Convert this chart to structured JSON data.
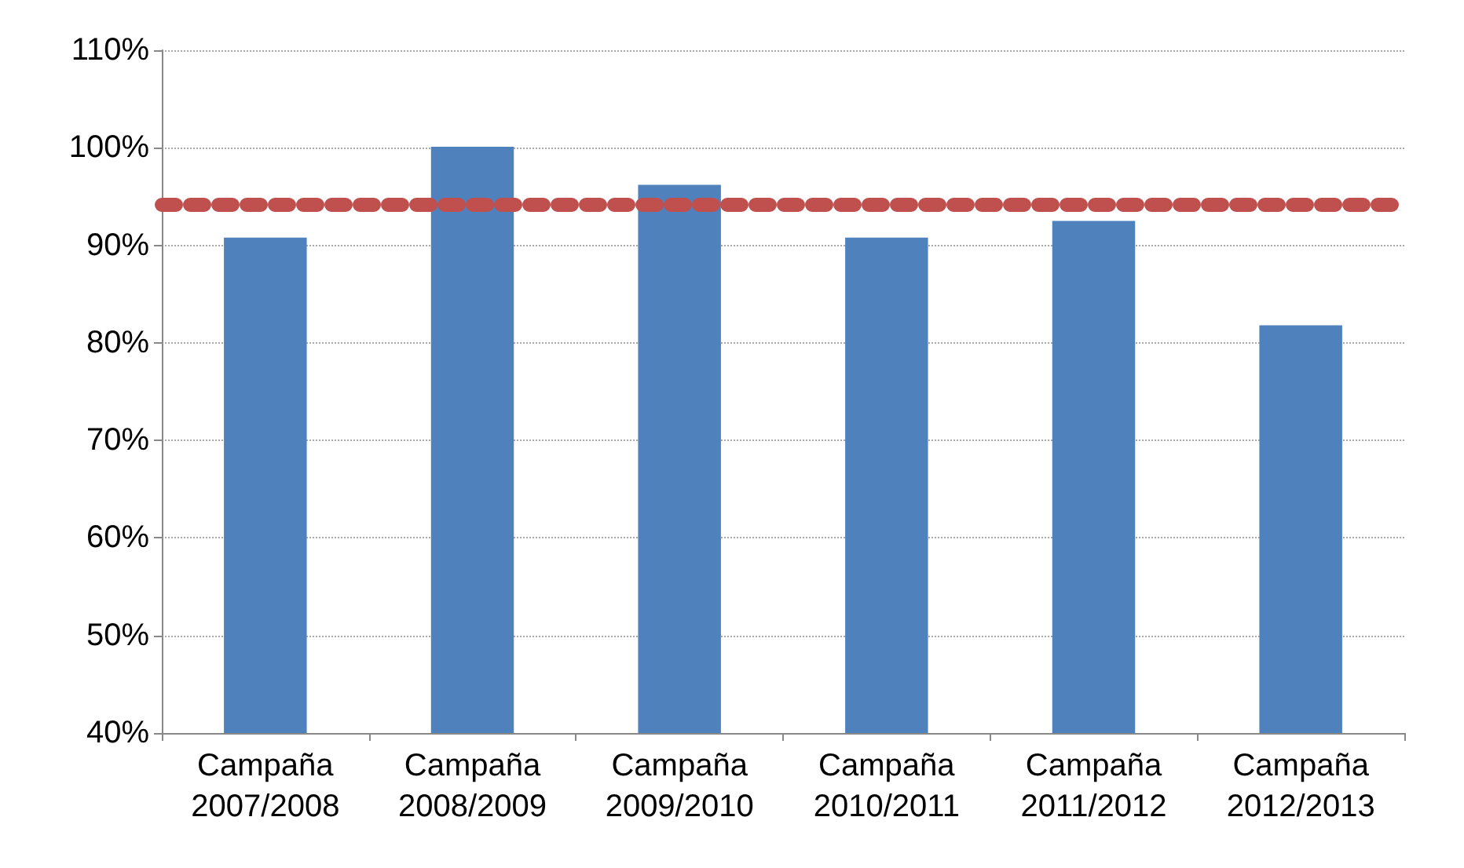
{
  "chart_data": {
    "type": "bar",
    "categories": [
      "Campaña\n2007/2008",
      "Campaña\n2008/2009",
      "Campaña\n2009/2010",
      "Campaña\n2010/2011",
      "Campaña\n2011/2012",
      "Campaña\n2012/2013"
    ],
    "values": [
      90.8,
      100.1,
      96.2,
      90.8,
      92.5,
      81.8
    ],
    "color": "#4f81bd",
    "ylim": [
      40,
      110
    ],
    "yticks": [
      {
        "value": 40,
        "label": "40%"
      },
      {
        "value": 50,
        "label": "50%"
      },
      {
        "value": 60,
        "label": "60%"
      },
      {
        "value": 70,
        "label": "70%"
      },
      {
        "value": 80,
        "label": "80%"
      },
      {
        "value": 90,
        "label": "90%"
      },
      {
        "value": 100,
        "label": "100%"
      },
      {
        "value": 110,
        "label": "110%"
      }
    ],
    "grid": "y",
    "ref_lines": [
      {
        "axis": "y",
        "value": 94.2,
        "color": "#c0504d",
        "line_style": "dotted"
      }
    ]
  }
}
